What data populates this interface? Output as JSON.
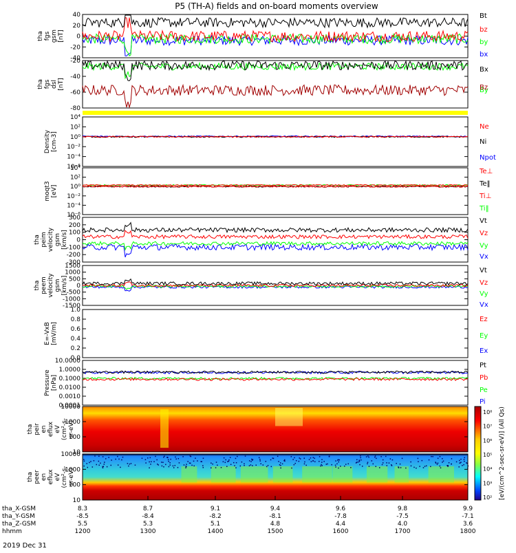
{
  "title": "P5 (TH-A) fields and on-board moments overview",
  "date_label": "2019 Dec 31",
  "colors": {
    "black": "#000000",
    "red": "#ff0000",
    "green": "#00ff00",
    "blue": "#0000ff",
    "darkred": "#a00000",
    "yellow": "#ffff00",
    "navy": "#000080"
  },
  "chart_data": [
    {
      "type": "line",
      "ylabel": [
        "tha",
        "fgs",
        "gsm",
        "[nT]"
      ],
      "ylim": [
        -40,
        40
      ],
      "yticks": [
        "40",
        "20",
        "0",
        "-20",
        "-40"
      ],
      "series": [
        {
          "name": "Bt",
          "color": "#000000",
          "mean": 25,
          "noise": 9
        },
        {
          "name": "bz",
          "color": "#ff0000",
          "mean": 0,
          "noise": 10
        },
        {
          "name": "by",
          "color": "#00ff00",
          "mean": -5,
          "noise": 9
        },
        {
          "name": "bx",
          "color": "#0000ff",
          "mean": -8,
          "noise": 9
        }
      ]
    },
    {
      "type": "line",
      "ylabel": [
        "tha",
        "fgs",
        "dsl",
        "[nT]"
      ],
      "ylim": [
        -80,
        0
      ],
      "yticks": [
        "-20",
        "-40",
        "-60",
        "-80"
      ],
      "series": [
        {
          "name": "Bx",
          "color": "#000000",
          "mean": -8,
          "noise": 8
        },
        {
          "name": "By",
          "color": "#00ff00",
          "mean": -10,
          "noise": 6
        },
        {
          "name": "Bz",
          "color": "#a00000",
          "mean": -50,
          "noise": 9
        }
      ]
    },
    {
      "type": "line",
      "ylabel": [
        "Density",
        "[cm-3]"
      ],
      "scale": "log",
      "yticks": [
        "10⁴",
        "10²",
        "10⁰",
        "10⁻²",
        "10⁻⁴",
        "10⁻⁶"
      ],
      "series": [
        {
          "name": "Ne",
          "color": "#ff0000",
          "mean": 1.0
        },
        {
          "name": "Ni",
          "color": "#000000",
          "mean": 1.0
        },
        {
          "name": "Npot",
          "color": "#0000ff",
          "mean": 1.2
        }
      ]
    },
    {
      "type": "line",
      "ylabel": [
        "moqt3",
        "[eV]"
      ],
      "scale": "log",
      "yticks": [
        "10⁴",
        "10²",
        "10⁰",
        "10⁻²",
        "10⁻⁴",
        "10⁻⁶"
      ],
      "series": [
        {
          "name": "Te⊥",
          "color": "#ff0000",
          "mean": 1.0
        },
        {
          "name": "Te‖",
          "color": "#000000",
          "mean": 1.0
        },
        {
          "name": "Ti⊥",
          "color": "#ff0000",
          "mean": 2.0
        },
        {
          "name": "Ti‖",
          "color": "#00ff00",
          "mean": 2.0
        }
      ]
    },
    {
      "type": "line",
      "ylabel": [
        "tha",
        "peim",
        "velocity",
        "gsm",
        "[km/s]"
      ],
      "ylim": [
        -300,
        300
      ],
      "yticks": [
        "300",
        "200",
        "100",
        "0",
        "-100",
        "-200",
        "-300"
      ],
      "series": [
        {
          "name": "Vt",
          "color": "#000000",
          "mean": 130,
          "noise": 30
        },
        {
          "name": "Vz",
          "color": "#ff0000",
          "mean": 40,
          "noise": 25
        },
        {
          "name": "Vy",
          "color": "#00ff00",
          "mean": -50,
          "noise": 25
        },
        {
          "name": "Vx",
          "color": "#0000ff",
          "mean": -100,
          "noise": 40
        }
      ]
    },
    {
      "type": "line",
      "ylabel": [
        "tha",
        "peem",
        "velocity",
        "gsm",
        "[km/s]"
      ],
      "ylim": [
        -1500,
        1500
      ],
      "yticks": [
        "1500",
        "1000",
        "500",
        "0",
        "-500",
        "-1000",
        "-1500"
      ],
      "series": [
        {
          "name": "Vt",
          "color": "#000000",
          "mean": 150,
          "noise": 120
        },
        {
          "name": "Vz",
          "color": "#ff0000",
          "mean": 0,
          "noise": 90
        },
        {
          "name": "Vy",
          "color": "#00ff00",
          "mean": -60,
          "noise": 80
        },
        {
          "name": "Vx",
          "color": "#0000ff",
          "mean": -120,
          "noise": 90
        }
      ]
    },
    {
      "type": "line",
      "ylabel": [
        "E=-VxB",
        "[mV/m]"
      ],
      "ylim": [
        0,
        1
      ],
      "yticks": [
        "1.0",
        "0.8",
        "0.6",
        "0.4",
        "0.2",
        "0.0"
      ],
      "series": [
        {
          "name": "Ez",
          "color": "#ff0000"
        },
        {
          "name": "Ey",
          "color": "#00ff00"
        },
        {
          "name": "Ex",
          "color": "#0000ff"
        }
      ]
    },
    {
      "type": "line",
      "ylabel": [
        "Pressure",
        "[nPa]"
      ],
      "scale": "log",
      "ylim": [
        0.0001,
        10
      ],
      "yticks": [
        "10.0000",
        "1.0000",
        "0.1000",
        "0.0100",
        "0.0010",
        "0.0001"
      ],
      "series": [
        {
          "name": "Pt",
          "color": "#000000",
          "mean": 0.5
        },
        {
          "name": "Pb",
          "color": "#ff0000",
          "mean": 0.08
        },
        {
          "name": "Pe",
          "color": "#00ff00",
          "mean": 0.1
        },
        {
          "name": "Pi",
          "color": "#0000ff",
          "mean": 0.45
        }
      ]
    },
    {
      "type": "heatmap",
      "ylabel": [
        "tha",
        "peir",
        "en",
        "eflux",
        "eV",
        "(cm²-s-",
        "sr-eV)"
      ],
      "scale": "log",
      "yticks": [
        "10000",
        "1000",
        "100",
        "10"
      ]
    },
    {
      "type": "heatmap",
      "ylabel": [
        "tha",
        "peer",
        "en",
        "eflux",
        "eV",
        "(cm²-s-",
        "sr-eV)"
      ],
      "scale": "log",
      "yticks": [
        "10000",
        "1000",
        "100",
        "10"
      ]
    }
  ],
  "colorbar": {
    "ticks": [
      "10⁸",
      "10⁷",
      "10⁶",
      "10⁵",
      "10⁴",
      "10³",
      "10²"
    ],
    "label": "[eV/(cm^2-sec-sr-eV)] (All Qs)"
  },
  "x_axis": {
    "rows": [
      {
        "label": "tha_X-GSM",
        "values": [
          "8.3",
          "8.7",
          "9.1",
          "9.4",
          "9.6",
          "9.8",
          "9.9"
        ]
      },
      {
        "label": "tha_Y-GSM",
        "values": [
          "-8.5",
          "-8.4",
          "-8.2",
          "-8.1",
          "-7.8",
          "-7.5",
          "-7.1"
        ]
      },
      {
        "label": "tha_Z-GSM",
        "values": [
          "5.5",
          "5.3",
          "5.1",
          "4.8",
          "4.4",
          "4.0",
          "3.6"
        ]
      },
      {
        "label": "hhmm",
        "values": [
          "1200",
          "1300",
          "1400",
          "1500",
          "1600",
          "1700",
          "1800"
        ]
      }
    ]
  }
}
